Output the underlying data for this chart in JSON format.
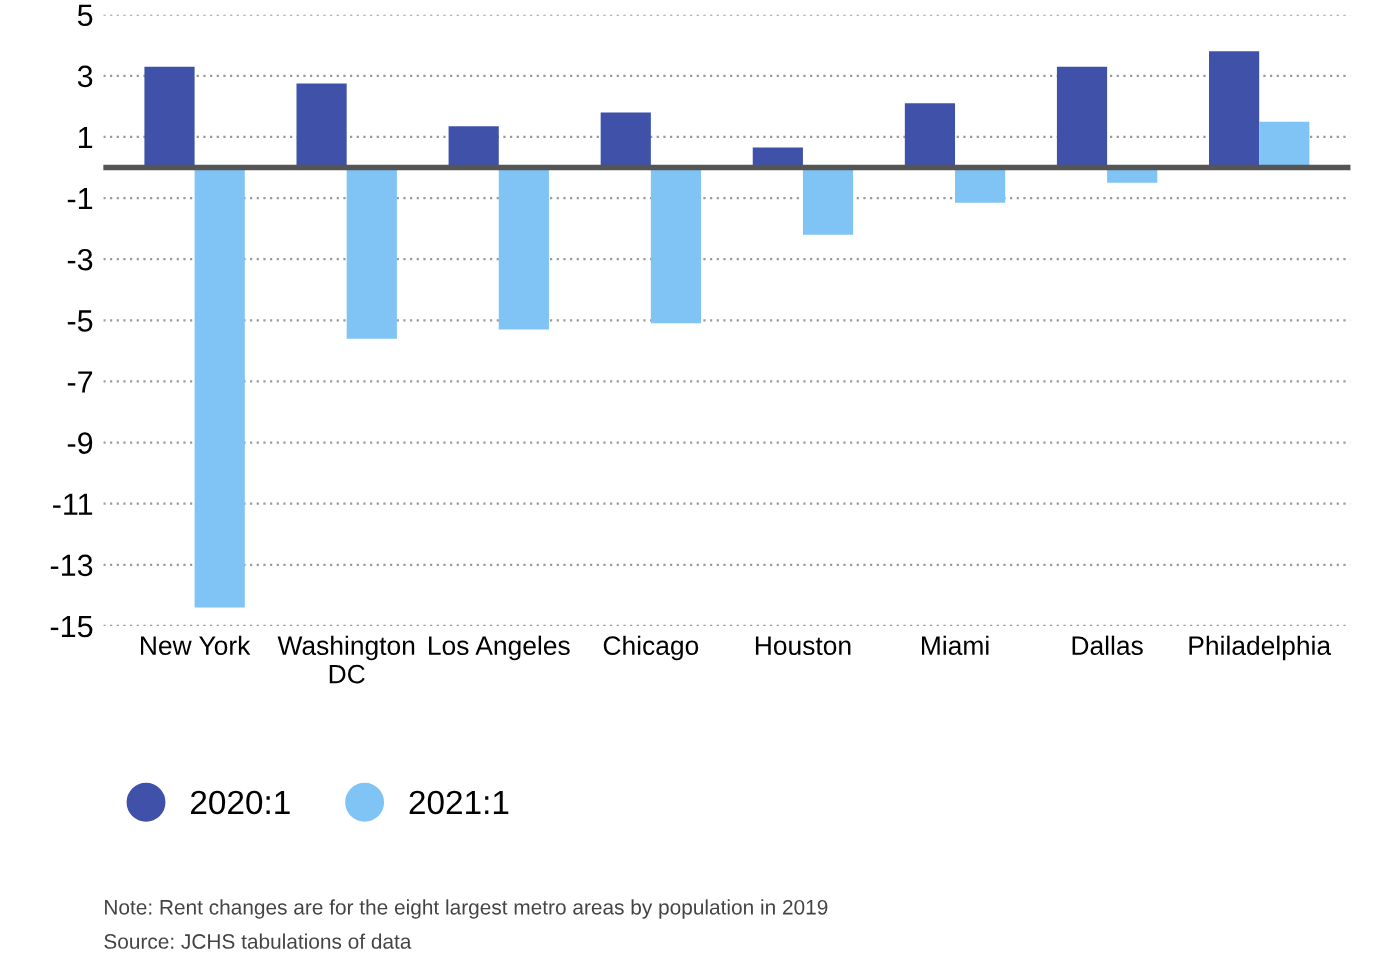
{
  "chart_data": {
    "type": "bar",
    "categories": [
      "New York",
      "Washington\nDC",
      "Los Angeles",
      "Chicago",
      "Houston",
      "Miami",
      "Dallas",
      "Philadelphia"
    ],
    "series": [
      {
        "name": "2020:1",
        "color": "#3f51a8",
        "values": [
          3.3,
          2.75,
          1.35,
          1.8,
          0.65,
          2.1,
          3.3,
          3.8
        ]
      },
      {
        "name": "2021:1",
        "color": "#7fc4f5",
        "values": [
          -14.4,
          -5.6,
          -5.3,
          -5.1,
          -2.2,
          -1.15,
          -0.5,
          1.5
        ]
      }
    ],
    "ylim": [
      -15,
      5
    ],
    "yticks": [
      -15,
      -13,
      -11,
      -9,
      -7,
      -5,
      -3,
      -1,
      1,
      3,
      5
    ],
    "grid": "y",
    "legend": "bottom",
    "ref_lines": [
      {
        "axis": "y",
        "value": 0,
        "color": "#555555"
      }
    ],
    "annotations": [
      "Note: Rent changes are for the eight largest metro areas by population in 2019",
      "Source: JCHS tabulations of data"
    ]
  }
}
